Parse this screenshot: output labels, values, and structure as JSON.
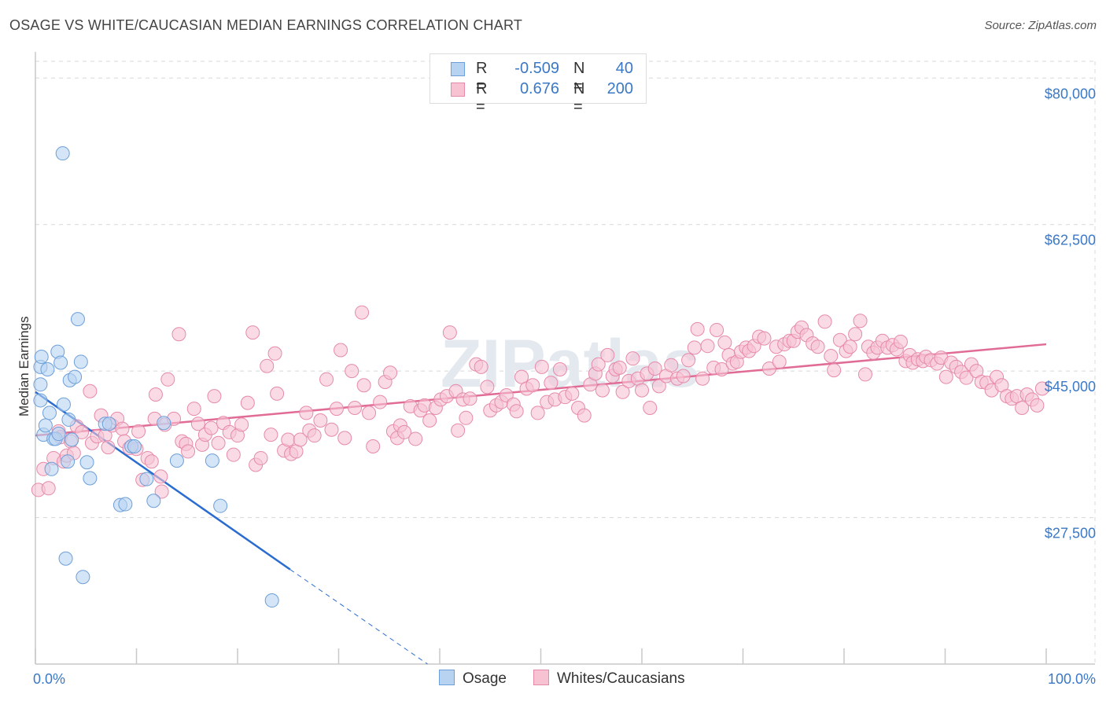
{
  "header": {
    "title": "OSAGE VS WHITE/CAUCASIAN MEDIAN EARNINGS CORRELATION CHART",
    "source": "Source: ZipAtlas.com"
  },
  "watermark": "ZIPatlas",
  "legend": {
    "rows": [
      {
        "r_label": "R =",
        "r_value": "-0.509",
        "n_label": "N =",
        "n_value": "40"
      },
      {
        "r_label": "R =",
        "r_value": "0.676",
        "n_label": "N =",
        "n_value": "200"
      }
    ],
    "bottom": [
      {
        "label": "Osage"
      },
      {
        "label": "Whites/Caucasians"
      }
    ]
  },
  "colors": {
    "osage_fill": "#b8d3f2",
    "osage_stroke": "#6d9fd9",
    "osage_line": "#2a6ccf",
    "white_fill": "#f7c3d3",
    "white_stroke": "#e68aaa",
    "white_line": "#e06b95",
    "axis_text": "#3b78c5",
    "grid": "#d8d8d8"
  },
  "chart_data": {
    "type": "scatter",
    "title": "OSAGE VS WHITE/CAUCASIAN MEDIAN EARNINGS CORRELATION CHART",
    "xlabel": "",
    "ylabel": "Median Earnings",
    "xlim": [
      0,
      100
    ],
    "ylim": [
      10000,
      82000
    ],
    "x_tick_labels": [
      "0.0%",
      "100.0%"
    ],
    "y_ticks": [
      27500,
      45000,
      62500,
      80000
    ],
    "y_tick_labels": [
      "$27,500",
      "$45,000",
      "$62,500",
      "$80,000"
    ],
    "series": [
      {
        "name": "Osage",
        "r": -0.509,
        "n": 40,
        "trend": {
          "x0": 0,
          "y0": 42500,
          "x1": 25.2,
          "y1": 21300,
          "dash_to_x": 40,
          "dash_to_y": 9000
        },
        "points": [
          [
            0.5,
            43400
          ],
          [
            0.5,
            41500
          ],
          [
            0.5,
            45500
          ],
          [
            0.6,
            46700
          ],
          [
            0.8,
            37400
          ],
          [
            1,
            38500
          ],
          [
            1.2,
            45200
          ],
          [
            1.4,
            40000
          ],
          [
            1.6,
            33300
          ],
          [
            1.8,
            36900
          ],
          [
            2,
            36900
          ],
          [
            2.2,
            47300
          ],
          [
            2.3,
            37500
          ],
          [
            2.5,
            46000
          ],
          [
            2.7,
            71000
          ],
          [
            2.8,
            41000
          ],
          [
            3,
            22600
          ],
          [
            3.2,
            34200
          ],
          [
            3.3,
            39200
          ],
          [
            3.4,
            43900
          ],
          [
            3.6,
            36800
          ],
          [
            3.9,
            44300
          ],
          [
            4.2,
            51200
          ],
          [
            4.5,
            46100
          ],
          [
            4.7,
            20400
          ],
          [
            5.1,
            34100
          ],
          [
            5.4,
            32200
          ],
          [
            6.9,
            38700
          ],
          [
            7.3,
            38700
          ],
          [
            8.4,
            29000
          ],
          [
            8.9,
            29100
          ],
          [
            9.5,
            36000
          ],
          [
            9.8,
            36000
          ],
          [
            11,
            32100
          ],
          [
            11.7,
            29500
          ],
          [
            12.7,
            38800
          ],
          [
            14,
            34300
          ],
          [
            17.5,
            34300
          ],
          [
            18.3,
            28900
          ],
          [
            23.4,
            17600
          ]
        ]
      },
      {
        "name": "Whites/Caucasians",
        "r": 0.676,
        "n": 200,
        "trend": {
          "x0": 0,
          "y0": 37300,
          "x1": 100,
          "y1": 48200
        },
        "points": [
          [
            0.3,
            30800
          ],
          [
            0.8,
            33300
          ],
          [
            1.3,
            31000
          ],
          [
            1.8,
            34600
          ],
          [
            2.3,
            37800
          ],
          [
            2.5,
            37100
          ],
          [
            2.8,
            34200
          ],
          [
            3.1,
            34900
          ],
          [
            3.5,
            36600
          ],
          [
            3.8,
            35200
          ],
          [
            4.1,
            38400
          ],
          [
            4.6,
            37700
          ],
          [
            5.4,
            42600
          ],
          [
            5.6,
            36400
          ],
          [
            6.1,
            37200
          ],
          [
            6.5,
            39700
          ],
          [
            6.9,
            37300
          ],
          [
            7.2,
            35900
          ],
          [
            7.6,
            38500
          ],
          [
            8.1,
            39300
          ],
          [
            8.6,
            38100
          ],
          [
            8.8,
            36600
          ],
          [
            9.3,
            35800
          ],
          [
            10,
            35700
          ],
          [
            10.2,
            37800
          ],
          [
            10.6,
            32000
          ],
          [
            11.1,
            34600
          ],
          [
            11.5,
            34200
          ],
          [
            11.8,
            39300
          ],
          [
            11.9,
            42200
          ],
          [
            12.4,
            32400
          ],
          [
            12.5,
            30600
          ],
          [
            12.8,
            38600
          ],
          [
            13.1,
            44000
          ],
          [
            13.7,
            39300
          ],
          [
            14.2,
            49400
          ],
          [
            14.5,
            36600
          ],
          [
            14.9,
            36300
          ],
          [
            15.1,
            35400
          ],
          [
            15.7,
            40500
          ],
          [
            16.1,
            38700
          ],
          [
            16.5,
            36200
          ],
          [
            16.8,
            37400
          ],
          [
            17.4,
            38200
          ],
          [
            17.7,
            42000
          ],
          [
            18.1,
            36400
          ],
          [
            18.6,
            38800
          ],
          [
            19.2,
            37700
          ],
          [
            19.6,
            35000
          ],
          [
            20,
            37300
          ],
          [
            20.4,
            38600
          ],
          [
            21,
            41200
          ],
          [
            21.5,
            49600
          ],
          [
            21.8,
            33800
          ],
          [
            22.3,
            34600
          ],
          [
            22.9,
            45600
          ],
          [
            23.3,
            37400
          ],
          [
            23.7,
            47100
          ],
          [
            23.9,
            42300
          ],
          [
            24.6,
            35500
          ],
          [
            25,
            36800
          ],
          [
            25.3,
            35100
          ],
          [
            25.8,
            35400
          ],
          [
            26.2,
            36800
          ],
          [
            26.8,
            40000
          ],
          [
            27.1,
            37900
          ],
          [
            27.6,
            37300
          ],
          [
            28.2,
            39100
          ],
          [
            28.8,
            44000
          ],
          [
            29.3,
            38000
          ],
          [
            29.8,
            40500
          ],
          [
            30.2,
            47500
          ],
          [
            30.6,
            37000
          ],
          [
            31.3,
            45000
          ],
          [
            31.6,
            40600
          ],
          [
            32.3,
            52000
          ],
          [
            32.5,
            43300
          ],
          [
            33,
            40000
          ],
          [
            33.4,
            36000
          ],
          [
            34.1,
            41300
          ],
          [
            34.6,
            43700
          ],
          [
            35.1,
            44800
          ],
          [
            35.4,
            37800
          ],
          [
            35.8,
            37000
          ],
          [
            36.1,
            38500
          ],
          [
            36.5,
            37700
          ],
          [
            37.1,
            40800
          ],
          [
            37.6,
            36900
          ],
          [
            38.1,
            40300
          ],
          [
            38.5,
            40900
          ],
          [
            39,
            39100
          ],
          [
            39.6,
            40600
          ],
          [
            40.1,
            41600
          ],
          [
            40.7,
            42000
          ],
          [
            41,
            49600
          ],
          [
            41.6,
            42600
          ],
          [
            41.8,
            37900
          ],
          [
            42.3,
            41600
          ],
          [
            42.6,
            39400
          ],
          [
            43,
            41700
          ],
          [
            43.6,
            45800
          ],
          [
            44.1,
            45500
          ],
          [
            44.7,
            43100
          ],
          [
            45,
            40300
          ],
          [
            45.6,
            40900
          ],
          [
            46.1,
            41300
          ],
          [
            46.6,
            42100
          ],
          [
            47.3,
            41000
          ],
          [
            47.6,
            40200
          ],
          [
            48.1,
            44300
          ],
          [
            48.6,
            42900
          ],
          [
            49.2,
            43300
          ],
          [
            49.7,
            40000
          ],
          [
            50.1,
            45500
          ],
          [
            50.6,
            41300
          ],
          [
            51,
            43600
          ],
          [
            51.4,
            41600
          ],
          [
            51.9,
            45200
          ],
          [
            52.4,
            41900
          ],
          [
            53.1,
            42300
          ],
          [
            53.7,
            40600
          ],
          [
            54.3,
            39700
          ],
          [
            54.9,
            43400
          ],
          [
            55.4,
            44700
          ],
          [
            55.7,
            45800
          ],
          [
            56.1,
            42700
          ],
          [
            56.6,
            46900
          ],
          [
            57.1,
            44400
          ],
          [
            57.4,
            45200
          ],
          [
            57.8,
            45400
          ],
          [
            58.1,
            42500
          ],
          [
            58.7,
            43800
          ],
          [
            59.1,
            46500
          ],
          [
            59.6,
            44100
          ],
          [
            60,
            42700
          ],
          [
            60.5,
            44700
          ],
          [
            60.8,
            40600
          ],
          [
            61.3,
            45300
          ],
          [
            61.7,
            43200
          ],
          [
            62.4,
            44400
          ],
          [
            62.9,
            45700
          ],
          [
            63.5,
            44100
          ],
          [
            64.1,
            44400
          ],
          [
            64.6,
            46300
          ],
          [
            65.2,
            47800
          ],
          [
            65.5,
            50000
          ],
          [
            66,
            44100
          ],
          [
            66.5,
            48000
          ],
          [
            67.1,
            45400
          ],
          [
            67.4,
            49900
          ],
          [
            67.9,
            45200
          ],
          [
            68.2,
            48400
          ],
          [
            68.6,
            46900
          ],
          [
            69,
            45900
          ],
          [
            69.4,
            46100
          ],
          [
            69.8,
            47300
          ],
          [
            70.3,
            47800
          ],
          [
            70.6,
            47400
          ],
          [
            71.1,
            48000
          ],
          [
            71.6,
            49100
          ],
          [
            72.1,
            48900
          ],
          [
            72.6,
            45300
          ],
          [
            73.3,
            47900
          ],
          [
            73.6,
            46100
          ],
          [
            74.1,
            48200
          ],
          [
            74.6,
            48600
          ],
          [
            75,
            48600
          ],
          [
            75.4,
            49700
          ],
          [
            75.8,
            50200
          ],
          [
            76.3,
            49300
          ],
          [
            76.9,
            48300
          ],
          [
            77.4,
            47900
          ],
          [
            78.1,
            50900
          ],
          [
            78.7,
            46800
          ],
          [
            79,
            45100
          ],
          [
            79.6,
            48700
          ],
          [
            80.2,
            47400
          ],
          [
            80.6,
            47900
          ],
          [
            81.1,
            49400
          ],
          [
            81.6,
            51000
          ],
          [
            82.1,
            44600
          ],
          [
            82.4,
            47900
          ],
          [
            82.9,
            47200
          ],
          [
            83.3,
            47800
          ],
          [
            83.8,
            48600
          ],
          [
            84.3,
            47800
          ],
          [
            84.8,
            48100
          ],
          [
            85.2,
            47600
          ],
          [
            85.6,
            48500
          ],
          [
            86.1,
            46200
          ],
          [
            86.5,
            46900
          ],
          [
            86.8,
            46000
          ],
          [
            87.3,
            46400
          ],
          [
            87.8,
            46200
          ],
          [
            88.1,
            46700
          ],
          [
            88.6,
            46300
          ],
          [
            89.2,
            45900
          ],
          [
            89.6,
            46600
          ],
          [
            90.1,
            44300
          ],
          [
            90.6,
            46000
          ],
          [
            91.1,
            45500
          ],
          [
            91.6,
            44900
          ],
          [
            92.1,
            44200
          ],
          [
            92.6,
            45800
          ],
          [
            93.1,
            45000
          ],
          [
            93.6,
            43700
          ],
          [
            94.1,
            43600
          ],
          [
            94.6,
            42700
          ],
          [
            95.1,
            44300
          ],
          [
            95.6,
            43300
          ],
          [
            96.1,
            42000
          ],
          [
            96.6,
            41700
          ],
          [
            97.1,
            42000
          ],
          [
            97.6,
            40600
          ],
          [
            98.1,
            42200
          ],
          [
            98.6,
            41600
          ],
          [
            99.1,
            40900
          ],
          [
            99.6,
            42900
          ]
        ]
      }
    ]
  }
}
